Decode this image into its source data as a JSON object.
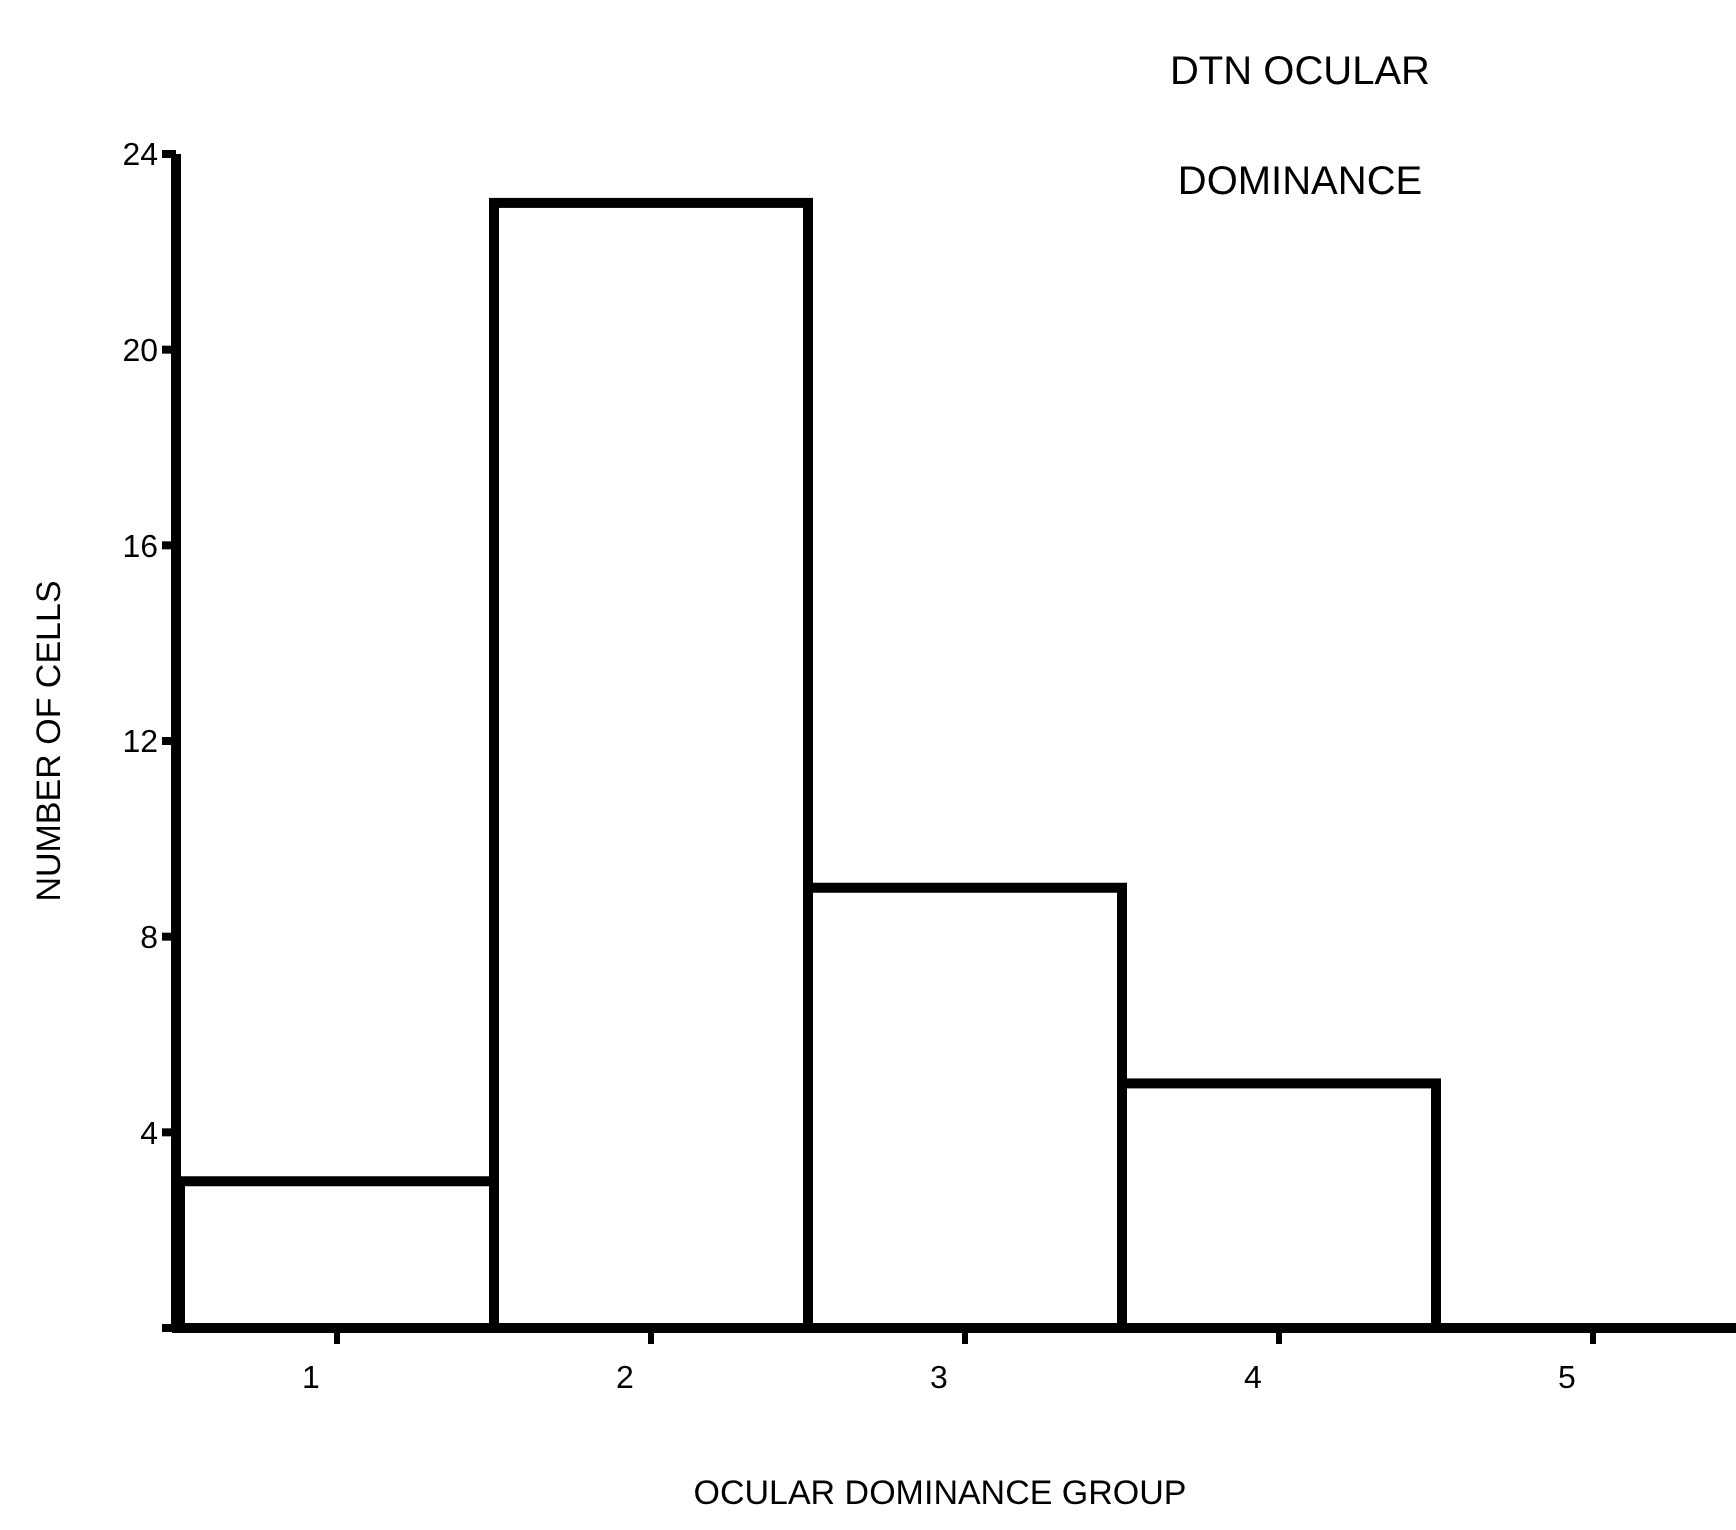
{
  "chart_data": {
    "type": "bar",
    "title": "DTN OCULAR\nDOMINANCE",
    "xlabel": "OCULAR DOMINANCE GROUP",
    "ylabel": "NUMBER OF CELLS",
    "categories": [
      "1",
      "2",
      "3",
      "4",
      "5"
    ],
    "values": [
      3,
      23,
      9,
      5,
      0
    ],
    "color": "#000000",
    "ylim": [
      0,
      24
    ],
    "yticks": [
      {
        "value": 0,
        "label": null
      },
      4,
      8,
      12,
      16,
      20,
      24
    ]
  }
}
